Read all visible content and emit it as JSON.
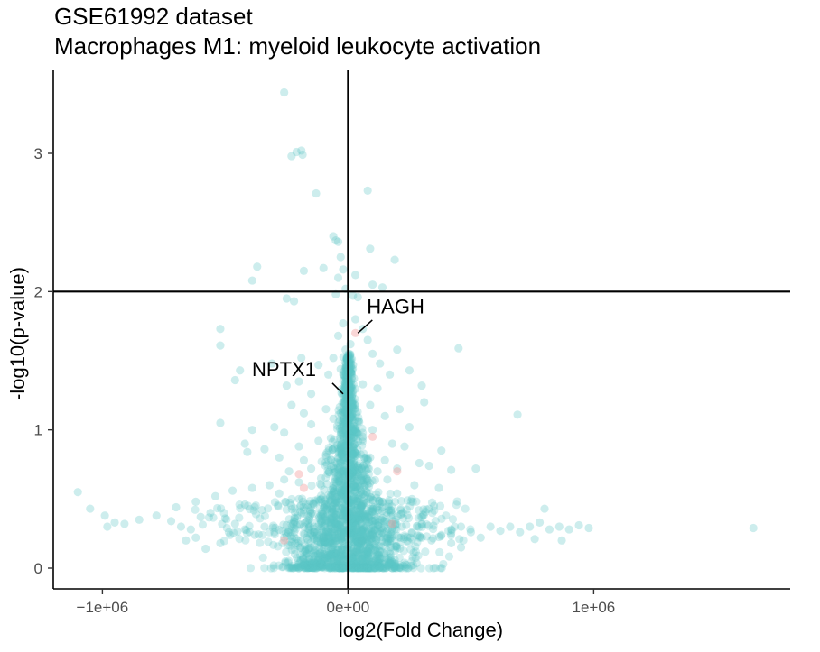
{
  "chart_data": {
    "type": "scatter",
    "title": "GSE61992 dataset",
    "subtitle": "Macrophages M1: myeloid leukocyte activation",
    "xlabel": "log2(Fold Change)",
    "ylabel": "-log10(p-value)",
    "xlim": [
      -1200000,
      1800000
    ],
    "ylim": [
      -0.15,
      3.6
    ],
    "x_ticks": [
      {
        "value": -1000000,
        "label": "−1e+06"
      },
      {
        "value": 0,
        "label": "0e+00"
      },
      {
        "value": 1000000,
        "label": "1e+06"
      }
    ],
    "y_ticks": [
      {
        "value": 0,
        "label": "0"
      },
      {
        "value": 1,
        "label": "1"
      },
      {
        "value": 2,
        "label": "2"
      },
      {
        "value": 3,
        "label": "3"
      }
    ],
    "grid": false,
    "legend": "none",
    "reference_lines": {
      "vertical_x": 0,
      "horizontal_y": 2
    },
    "colors": {
      "points": "#5bc4c4",
      "highlighted": "#f4a3a3",
      "lines": "#000000"
    },
    "labeled_genes": [
      {
        "name": "HAGH",
        "x": 40000,
        "y": 1.7
      },
      {
        "name": "NPTX1",
        "x": -20000,
        "y": 1.26
      }
    ],
    "series": [
      {
        "points": [
          [
            -260000,
            3.44
          ],
          [
            -190000,
            3.02
          ],
          [
            -210000,
            3.01
          ],
          [
            -185000,
            2.99
          ],
          [
            -230000,
            2.98
          ],
          [
            80000,
            2.73
          ],
          [
            -130000,
            2.71
          ],
          [
            -60000,
            2.4
          ],
          [
            -50000,
            2.37
          ],
          [
            -40000,
            2.36
          ],
          [
            -30000,
            2.25
          ],
          [
            90000,
            2.31
          ],
          [
            -100000,
            2.17
          ],
          [
            -20000,
            2.16
          ],
          [
            190000,
            2.23
          ],
          [
            -370000,
            2.18
          ],
          [
            -390000,
            2.08
          ],
          [
            -180000,
            2.15
          ],
          [
            -40000,
            2.1
          ],
          [
            30000,
            2.12
          ],
          [
            100000,
            2.05
          ],
          [
            140000,
            2.03
          ],
          [
            -10000,
            2.02
          ],
          [
            -250000,
            1.95
          ],
          [
            -220000,
            1.93
          ],
          [
            -50000,
            1.98
          ],
          [
            20000,
            1.97
          ],
          [
            40000,
            1.96
          ],
          [
            30000,
            1.8
          ],
          [
            60000,
            1.73
          ],
          [
            -20000,
            1.77
          ],
          [
            -40000,
            1.68
          ],
          [
            80000,
            1.65
          ],
          [
            10000,
            1.62
          ],
          [
            -10000,
            1.58
          ],
          [
            100000,
            1.55
          ],
          [
            -60000,
            1.52
          ],
          [
            130000,
            1.48
          ],
          [
            -120000,
            1.47
          ],
          [
            200000,
            1.58
          ],
          [
            -190000,
            1.52
          ],
          [
            450000,
            1.59
          ],
          [
            -310000,
            1.48
          ],
          [
            -520000,
            1.73
          ],
          [
            -520000,
            1.61
          ],
          [
            -440000,
            1.43
          ],
          [
            -460000,
            1.36
          ],
          [
            -250000,
            1.32
          ],
          [
            -200000,
            1.35
          ],
          [
            -150000,
            1.26
          ],
          [
            170000,
            1.4
          ],
          [
            250000,
            1.43
          ],
          [
            300000,
            1.32
          ],
          [
            -80000,
            1.4
          ],
          [
            60000,
            1.33
          ],
          [
            120000,
            1.3
          ],
          [
            -30000,
            1.44
          ],
          [
            20000,
            1.47
          ],
          [
            -5000,
            1.25
          ],
          [
            15000,
            1.38
          ],
          [
            -230000,
            1.18
          ],
          [
            -180000,
            1.12
          ],
          [
            -90000,
            1.15
          ],
          [
            90000,
            1.18
          ],
          [
            150000,
            1.1
          ],
          [
            210000,
            1.15
          ],
          [
            310000,
            1.2
          ],
          [
            690000,
            1.11
          ],
          [
            -520000,
            1.05
          ],
          [
            -390000,
            1.0
          ],
          [
            -300000,
            1.02
          ],
          [
            -260000,
            0.98
          ],
          [
            -150000,
            1.04
          ],
          [
            -60000,
            1.08
          ],
          [
            40000,
            1.06
          ],
          [
            100000,
            1.0
          ],
          [
            250000,
            1.02
          ],
          [
            -420000,
            0.9
          ],
          [
            -340000,
            0.86
          ],
          [
            -200000,
            0.88
          ],
          [
            -120000,
            0.92
          ],
          [
            -70000,
            0.94
          ],
          [
            60000,
            0.95
          ],
          [
            180000,
            0.9
          ],
          [
            230000,
            0.88
          ],
          [
            380000,
            0.85
          ],
          [
            -410000,
            0.84
          ],
          [
            -280000,
            0.8
          ],
          [
            -180000,
            0.78
          ],
          [
            -90000,
            0.82
          ],
          [
            -30000,
            0.85
          ],
          [
            20000,
            0.88
          ],
          [
            90000,
            0.8
          ],
          [
            150000,
            0.78
          ],
          [
            290000,
            0.76
          ],
          [
            -240000,
            0.7
          ],
          [
            -150000,
            0.72
          ],
          [
            -60000,
            0.74
          ],
          [
            40000,
            0.73
          ],
          [
            120000,
            0.7
          ],
          [
            200000,
            0.72
          ],
          [
            330000,
            0.74
          ],
          [
            420000,
            0.71
          ],
          [
            520000,
            0.72
          ],
          [
            -260000,
            0.64
          ],
          [
            -200000,
            0.62
          ],
          [
            -110000,
            0.65
          ],
          [
            -40000,
            0.67
          ],
          [
            30000,
            0.66
          ],
          [
            80000,
            0.63
          ],
          [
            160000,
            0.64
          ],
          [
            270000,
            0.6
          ],
          [
            370000,
            0.58
          ],
          [
            -320000,
            0.6
          ],
          [
            -390000,
            0.58
          ],
          [
            -470000,
            0.56
          ],
          [
            -540000,
            0.52
          ],
          [
            -620000,
            0.48
          ],
          [
            -700000,
            0.44
          ],
          [
            -780000,
            0.38
          ],
          [
            -850000,
            0.35
          ],
          [
            -910000,
            0.32
          ],
          [
            -980000,
            0.3
          ],
          [
            -1100000,
            0.55
          ],
          [
            -1050000,
            0.43
          ],
          [
            -990000,
            0.38
          ],
          [
            -950000,
            0.33
          ],
          [
            -720000,
            0.34
          ],
          [
            -680000,
            0.3
          ],
          [
            -640000,
            0.28
          ],
          [
            -600000,
            0.37
          ],
          [
            -560000,
            0.4
          ],
          [
            -500000,
            0.36
          ],
          [
            -460000,
            0.32
          ],
          [
            -420000,
            0.28
          ],
          [
            -380000,
            0.24
          ],
          [
            -340000,
            0.3
          ],
          [
            -300000,
            0.26
          ],
          [
            -260000,
            0.22
          ],
          [
            -220000,
            0.34
          ],
          [
            -180000,
            0.3
          ],
          [
            -140000,
            0.26
          ],
          [
            -100000,
            0.22
          ],
          [
            -60000,
            0.18
          ],
          [
            -20000,
            0.1
          ],
          [
            20000,
            0.12
          ],
          [
            60000,
            0.2
          ],
          [
            100000,
            0.24
          ],
          [
            140000,
            0.28
          ],
          [
            180000,
            0.32
          ],
          [
            220000,
            0.3
          ],
          [
            260000,
            0.26
          ],
          [
            300000,
            0.22
          ],
          [
            340000,
            0.2
          ],
          [
            380000,
            0.24
          ],
          [
            420000,
            0.28
          ],
          [
            460000,
            0.3
          ],
          [
            500000,
            0.26
          ],
          [
            540000,
            0.22
          ],
          [
            580000,
            0.3
          ],
          [
            620000,
            0.27
          ],
          [
            660000,
            0.3
          ],
          [
            700000,
            0.26
          ],
          [
            740000,
            0.3
          ],
          [
            780000,
            0.33
          ],
          [
            820000,
            0.28
          ],
          [
            860000,
            0.3
          ],
          [
            900000,
            0.28
          ],
          [
            940000,
            0.31
          ],
          [
            980000,
            0.29
          ],
          [
            1650000,
            0.29
          ],
          [
            800000,
            0.43
          ],
          [
            870000,
            0.2
          ],
          [
            760000,
            0.21
          ],
          [
            460000,
            0.15
          ],
          [
            420000,
            0.18
          ],
          [
            350000,
            0.45
          ],
          [
            260000,
            0.5
          ],
          [
            200000,
            0.54
          ],
          [
            140000,
            0.48
          ],
          [
            -140000,
            0.46
          ],
          [
            -200000,
            0.5
          ],
          [
            -280000,
            0.54
          ],
          [
            -350000,
            0.42
          ],
          [
            -420000,
            0.46
          ],
          [
            -480000,
            0.24
          ],
          [
            -520000,
            0.18
          ],
          [
            -580000,
            0.14
          ],
          [
            -620000,
            0.22
          ],
          [
            -660000,
            0.2
          ]
        ]
      },
      {
        "points": [
          [
            30000,
            1.7
          ],
          [
            -200000,
            0.68
          ],
          [
            200000,
            0.7
          ],
          [
            -180000,
            0.58
          ],
          [
            100000,
            0.95
          ],
          [
            -260000,
            0.2
          ],
          [
            180000,
            0.32
          ]
        ]
      }
    ]
  }
}
